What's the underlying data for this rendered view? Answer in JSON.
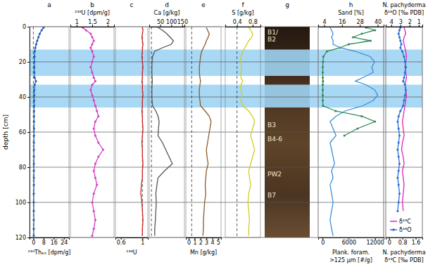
{
  "chart_data": {
    "type": "line",
    "ylabel": "depth [cm]",
    "ylim": [
      0,
      120
    ],
    "yticks": [
      0,
      20,
      40,
      60,
      80,
      100,
      120
    ],
    "grid": true,
    "legend": "lower right",
    "bands": [
      [
        13,
        28
      ],
      [
        33,
        46
      ]
    ],
    "core": {
      "label": "g",
      "layers": [
        {
          "label": "B1/",
          "depth": 3
        },
        {
          "label": "B2",
          "depth": 7
        },
        {
          "label": "B3",
          "depth": 56
        },
        {
          "label": "B4-6",
          "depth": 64
        },
        {
          "label": "PW2",
          "depth": 84
        },
        {
          "label": "B7",
          "depth": 96
        }
      ]
    },
    "panels": [
      {
        "label": "a",
        "xlabel": "²³⁰Thₑₓ [dpm/g]",
        "xlim": [
          -3,
          28
        ],
        "xticks": [
          0,
          8,
          16,
          24
        ],
        "baseline": 0,
        "series": [
          {
            "color": "#1f5fb0",
            "marker": "circle",
            "x": [
              8,
              6.5,
              5,
              4,
              3,
              2.2,
              1.5,
              1.1,
              0.9,
              0.8,
              0.7,
              0.7,
              1.0,
              2.0,
              1.0,
              0.7,
              0.6,
              0.6,
              0.6,
              0.5,
              0.5,
              0.5,
              0.5,
              0.5,
              0.4,
              0.4,
              0.4,
              0.4,
              0.4,
              0.4,
              0.4,
              0.3,
              0.3,
              0.3,
              0.3,
              0.3,
              0.3
            ],
            "values": [
              0.5,
              2,
              4,
              6,
              8,
              10,
              12,
              14,
              17,
              20,
              23,
              26,
              29,
              31,
              33,
              36,
              39,
              42,
              45,
              48,
              51,
              54,
              58,
              62,
              66,
              70,
              74,
              78,
              82,
              86,
              90,
              95,
              100,
              105,
              110,
              115,
              119
            ]
          }
        ]
      },
      {
        "label": "b",
        "xlabel": "²³⁸U [dpm/g]",
        "xlim": [
          0.8,
          2.2
        ],
        "xticks": [
          1,
          1.5,
          2
        ],
        "series": [
          {
            "color": "#d63fc4",
            "marker": "circle",
            "x": [
              1.2,
              1.3,
              1.45,
              1.5,
              1.55,
              1.5,
              1.45,
              1.5,
              1.55,
              1.5,
              1.45,
              1.5,
              1.55,
              1.6,
              1.5,
              1.45,
              1.5,
              1.55,
              1.6,
              1.65,
              1.7,
              1.6,
              1.55,
              1.6,
              1.7,
              1.85,
              1.7,
              1.6,
              1.55,
              1.6,
              1.65,
              1.55,
              1.5,
              1.55,
              1.6,
              1.55,
              1.5
            ],
            "values": [
              0.5,
              2,
              4,
              6,
              8,
              10,
              12,
              14,
              17,
              20,
              23,
              26,
              29,
              31,
              33,
              36,
              39,
              42,
              45,
              48,
              51,
              54,
              58,
              62,
              66,
              70,
              74,
              78,
              82,
              86,
              90,
              95,
              100,
              105,
              110,
              115,
              119
            ]
          }
        ]
      },
      {
        "label": "c",
        "xlabel": "²³⁸U",
        "xlim": [
          0.5,
          1.1
        ],
        "xticks": [
          0.6,
          1
        ],
        "baseline": 1,
        "series": [
          {
            "color": "#cc2222",
            "x": [
              1.0,
              1.01,
              1.0,
              0.99,
              1.0,
              1.01,
              1.0,
              1.0,
              0.99,
              1.0,
              1.01,
              1.0,
              1.0,
              0.99,
              1.0,
              1.0,
              1.01,
              1.0,
              1.0,
              0.99,
              1.0,
              1.0,
              1.01,
              1.0,
              0.99,
              1.0,
              1.0,
              1.01,
              1.0,
              1.0,
              0.98,
              0.97,
              0.99,
              1.0,
              1.01,
              1.0,
              1.0
            ],
            "values": [
              0.5,
              2,
              4,
              6,
              8,
              10,
              12,
              14,
              17,
              20,
              23,
              26,
              29,
              31,
              33,
              36,
              39,
              42,
              45,
              48,
              51,
              54,
              58,
              62,
              66,
              70,
              74,
              78,
              82,
              86,
              90,
              95,
              100,
              105,
              110,
              115,
              119
            ]
          }
        ]
      },
      {
        "label": "d",
        "xlabel": "Ca [g/kg]",
        "xlim": [
          0,
          160
        ],
        "xticks": [
          50,
          100,
          150
        ],
        "baseline": 10,
        "series": [
          {
            "color": "#555555",
            "x": [
              40,
              60,
              80,
              95,
              110,
              100,
              60,
              25,
              15,
              13,
              12,
              12,
              13,
              14,
              13,
              12,
              12,
              13,
              15,
              30,
              40,
              45,
              42,
              40,
              60,
              75,
              90,
              105,
              70,
              40,
              35,
              30,
              32,
              30,
              28,
              25,
              25
            ],
            "values": [
              0.5,
              2,
              4,
              6,
              8,
              10,
              12,
              14,
              17,
              20,
              23,
              26,
              29,
              31,
              33,
              36,
              39,
              42,
              45,
              48,
              51,
              54,
              58,
              62,
              66,
              70,
              74,
              78,
              82,
              86,
              90,
              95,
              100,
              105,
              110,
              115,
              119
            ]
          }
        ]
      },
      {
        "label": "e",
        "xlabel": "Mn [g/kg]",
        "xlim": [
          -0.5,
          5.5
        ],
        "xticks": [
          0,
          1,
          2,
          3,
          4,
          5
        ],
        "baseline": 0.5,
        "series": [
          {
            "color": "#8b5a2b",
            "x": [
              3.0,
              3.2,
              3.5,
              3.3,
              3.0,
              2.8,
              2.5,
              2.2,
              2.0,
              1.9,
              1.8,
              1.8,
              1.9,
              2.0,
              1.9,
              1.8,
              1.8,
              1.9,
              2.0,
              2.8,
              3.5,
              3.8,
              3.6,
              3.4,
              3.2,
              3.0,
              3.1,
              3.3,
              3.0,
              2.9,
              2.8,
              2.9,
              2.7,
              2.6,
              2.5,
              2.5,
              2.4
            ],
            "values": [
              0.5,
              2,
              4,
              6,
              8,
              10,
              12,
              14,
              17,
              20,
              23,
              26,
              29,
              31,
              33,
              36,
              39,
              42,
              45,
              48,
              51,
              54,
              58,
              62,
              66,
              70,
              74,
              78,
              82,
              86,
              90,
              95,
              100,
              105,
              110,
              115,
              119
            ]
          }
        ]
      },
      {
        "label": "f",
        "xlabel": "S [g/kg]",
        "xlim": [
          0.1,
          1.0
        ],
        "xticks": [
          0.4,
          0.8
        ],
        "baseline": 0.4,
        "series": [
          {
            "color": "#d4cc1e",
            "x": [
              0.7,
              0.75,
              0.8,
              0.78,
              0.7,
              0.65,
              0.6,
              0.55,
              0.5,
              0.5,
              0.52,
              0.5,
              0.5,
              0.55,
              0.5,
              0.5,
              0.52,
              0.5,
              0.55,
              0.7,
              0.8,
              0.85,
              0.8,
              0.75,
              0.8,
              0.85,
              0.8,
              0.75,
              0.7,
              0.72,
              0.75,
              0.7,
              0.68,
              0.7,
              0.72,
              0.7,
              0.7
            ],
            "values": [
              0.5,
              2,
              4,
              6,
              8,
              10,
              12,
              14,
              17,
              20,
              23,
              26,
              29,
              31,
              33,
              36,
              39,
              42,
              45,
              48,
              51,
              54,
              58,
              62,
              66,
              70,
              74,
              78,
              82,
              86,
              90,
              95,
              100,
              105,
              110,
              115,
              119
            ]
          }
        ]
      },
      {
        "label": "h",
        "xlabel": [
          "Plank. foram.",
          ">125 µm [#/g]"
        ],
        "xlim": [
          -1000,
          14000
        ],
        "xticks": [
          0,
          6000,
          12000
        ],
        "series": [
          {
            "color": "#2e8b57",
            "marker": "circle",
            "x": [
              10000,
              12000,
              9000,
              7000,
              11000,
              6000,
              4000,
              1000,
              200,
              100,
              50,
              50,
              50,
              100,
              50,
              50,
              50,
              50,
              100,
              3000,
              9000,
              12000,
              8000,
              5000
            ],
            "values": [
              0.5,
              2,
              4,
              6,
              8,
              10,
              12,
              14,
              17,
              20,
              23,
              26,
              29,
              31,
              33,
              36,
              39,
              42,
              45,
              48,
              51,
              54,
              58,
              62
            ]
          }
        ]
      },
      {
        "xlabel": "Sand [%]",
        "xlim": [
          0,
          44
        ],
        "xticks": [
          4,
          16,
          28,
          40
        ],
        "series": [
          {
            "color": "#3b8fd9",
            "x": [
              8,
              9,
              10,
              9,
              10,
              10,
              15,
              25,
              35,
              38,
              36,
              37,
              30,
              25,
              32,
              38,
              40,
              37,
              30,
              18,
              12,
              8,
              10,
              12,
              8,
              9,
              10,
              11,
              9,
              10,
              8,
              9,
              10,
              9,
              8,
              9,
              10
            ],
            "values": [
              0.5,
              2,
              4,
              6,
              8,
              10,
              12,
              14,
              17,
              20,
              23,
              26,
              29,
              31,
              33,
              36,
              39,
              42,
              45,
              48,
              51,
              54,
              58,
              62,
              66,
              70,
              74,
              78,
              82,
              86,
              90,
              95,
              100,
              105,
              110,
              115,
              119
            ]
          }
        ]
      },
      {
        "xlabel": [
          "N. pachyderma",
          "δ¹³C [‰ PDB]"
        ],
        "xlim": [
          -0.2,
          2.0
        ],
        "xticks": [
          0,
          0.8,
          1.6
        ],
        "series": [
          {
            "name": "δ¹³C",
            "color": "#e020c0",
            "x": [
              0.9,
              0.95,
              1.0,
              0.9,
              0.85,
              0.9,
              0.95,
              1.0,
              1.05,
              1.0,
              0.95,
              1.0,
              1.05,
              1.0,
              0.95,
              1.0,
              1.05,
              1.0,
              0.95,
              0.9,
              0.85,
              0.8,
              0.85,
              0.9,
              0.8,
              0.75,
              0.85,
              0.9,
              0.8,
              0.85,
              0.9,
              0.85,
              0.8,
              0.85
            ],
            "values": [
              0.5,
              2,
              4,
              6,
              8,
              10,
              12,
              14,
              17,
              20,
              23,
              26,
              29,
              31,
              33,
              36,
              39,
              42,
              45,
              48,
              51,
              54,
              58,
              62,
              66,
              70,
              74,
              78,
              82,
              86,
              90,
              95,
              100,
              105
            ]
          }
        ]
      },
      {
        "xlabel": [
          "N. pachyderma",
          "δ¹⁸O [‰ PDB]"
        ],
        "xlim": [
          4.6,
          0.6
        ],
        "xticks": [
          4,
          3,
          2,
          1
        ],
        "series": [
          {
            "name": "δ¹⁸O",
            "color": "#2a6fd0",
            "marker": "circle",
            "x": [
              3.0,
              3.1,
              3.2,
              3.1,
              3.0,
              2.9,
              3.0,
              2.8,
              2.6,
              2.5,
              2.4,
              2.5,
              2.6,
              2.7,
              2.5,
              2.4,
              2.5,
              2.6,
              2.7,
              3.0,
              3.2,
              3.3,
              3.2,
              3.1,
              3.2,
              3.3,
              3.2,
              3.1,
              3.2,
              3.3,
              3.2,
              3.1,
              3.2,
              3.3
            ],
            "values": [
              0.5,
              2,
              4,
              6,
              8,
              10,
              12,
              14,
              17,
              20,
              23,
              26,
              29,
              31,
              33,
              36,
              39,
              42,
              45,
              48,
              51,
              54,
              58,
              62,
              66,
              70,
              74,
              78,
              82,
              86,
              90,
              95,
              100,
              105
            ]
          }
        ]
      }
    ]
  }
}
